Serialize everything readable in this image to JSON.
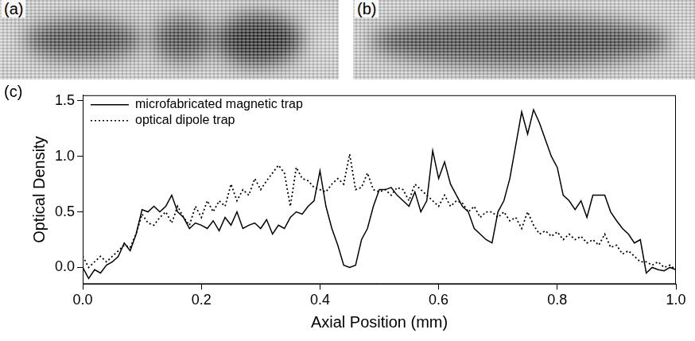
{
  "images": [
    {
      "label": "(a)"
    },
    {
      "label": "(b)"
    }
  ],
  "chart_data": {
    "type": "line",
    "panel_label": "(c)",
    "x_label": "Axial Position (mm)",
    "y_label": "Optical Density",
    "xlim": [
      0,
      1
    ],
    "xticks": [
      {
        "value": 0,
        "label": "0.0"
      },
      {
        "value": 0.2,
        "label": "0.2"
      },
      {
        "value": 0.4,
        "label": "0.4"
      },
      {
        "value": 0.6,
        "label": "0.6"
      },
      {
        "value": 0.8,
        "label": "0.8"
      },
      {
        "value": 1,
        "label": "1.0"
      }
    ],
    "ylim": [
      -0.15,
      1.55
    ],
    "yticks": [
      {
        "value": 0,
        "label": "0.0"
      },
      {
        "value": 0.5,
        "label": "0.5"
      },
      {
        "value": 1,
        "label": "1.0"
      },
      {
        "value": 1.5,
        "label": "1.5"
      }
    ],
    "grid": false,
    "legend": "upper left",
    "x": [
      0.0,
      0.01,
      0.02,
      0.03,
      0.04,
      0.05,
      0.06,
      0.07,
      0.08,
      0.09,
      0.1,
      0.11,
      0.12,
      0.13,
      0.14,
      0.15,
      0.16,
      0.17,
      0.18,
      0.19,
      0.2,
      0.21,
      0.22,
      0.23,
      0.24,
      0.25,
      0.26,
      0.27,
      0.28,
      0.29,
      0.3,
      0.31,
      0.32,
      0.33,
      0.34,
      0.35,
      0.36,
      0.37,
      0.38,
      0.39,
      0.4,
      0.41,
      0.42,
      0.43,
      0.44,
      0.45,
      0.46,
      0.47,
      0.48,
      0.49,
      0.5,
      0.51,
      0.52,
      0.53,
      0.54,
      0.55,
      0.56,
      0.57,
      0.58,
      0.59,
      0.6,
      0.61,
      0.62,
      0.63,
      0.64,
      0.65,
      0.66,
      0.67,
      0.68,
      0.69,
      0.7,
      0.71,
      0.72,
      0.73,
      0.74,
      0.75,
      0.76,
      0.77,
      0.78,
      0.79,
      0.8,
      0.81,
      0.82,
      0.83,
      0.84,
      0.85,
      0.86,
      0.87,
      0.88,
      0.89,
      0.9,
      0.91,
      0.92,
      0.93,
      0.94,
      0.95,
      0.96,
      0.97,
      0.98,
      0.99,
      1.0
    ],
    "series": [
      {
        "name": "microfabricated magnetic trap",
        "color": "#000000",
        "line_style": "solid",
        "values": [
          0.0,
          -0.1,
          -0.02,
          -0.05,
          0.02,
          0.05,
          0.1,
          0.22,
          0.15,
          0.3,
          0.52,
          0.5,
          0.55,
          0.5,
          0.55,
          0.65,
          0.5,
          0.45,
          0.35,
          0.4,
          0.38,
          0.35,
          0.42,
          0.33,
          0.45,
          0.38,
          0.5,
          0.35,
          0.38,
          0.4,
          0.35,
          0.43,
          0.3,
          0.38,
          0.35,
          0.45,
          0.5,
          0.48,
          0.55,
          0.6,
          0.87,
          0.55,
          0.35,
          0.2,
          0.02,
          0.0,
          0.02,
          0.25,
          0.35,
          0.55,
          0.7,
          0.7,
          0.72,
          0.65,
          0.6,
          0.55,
          0.68,
          0.5,
          0.6,
          1.05,
          0.8,
          0.95,
          0.75,
          0.65,
          0.55,
          0.5,
          0.35,
          0.3,
          0.25,
          0.22,
          0.5,
          0.6,
          0.8,
          1.1,
          1.4,
          1.2,
          1.42,
          1.3,
          1.15,
          1.0,
          0.9,
          0.65,
          0.6,
          0.52,
          0.6,
          0.45,
          0.65,
          0.65,
          0.65,
          0.5,
          0.42,
          0.35,
          0.3,
          0.22,
          0.25,
          -0.05,
          0.0,
          -0.02,
          -0.03,
          0.0,
          -0.02
        ]
      },
      {
        "name": "optical dipole trap",
        "color": "#000000",
        "line_style": "dotted",
        "values": [
          0.1,
          0.0,
          0.05,
          0.1,
          0.05,
          0.1,
          0.15,
          0.2,
          0.18,
          0.3,
          0.48,
          0.4,
          0.38,
          0.45,
          0.5,
          0.4,
          0.55,
          0.45,
          0.38,
          0.55,
          0.45,
          0.6,
          0.5,
          0.6,
          0.55,
          0.75,
          0.6,
          0.7,
          0.65,
          0.8,
          0.7,
          0.78,
          0.85,
          0.92,
          0.85,
          0.55,
          0.9,
          0.8,
          0.78,
          0.72,
          0.7,
          0.68,
          0.75,
          0.8,
          0.75,
          1.02,
          0.7,
          0.72,
          0.85,
          0.7,
          0.68,
          0.7,
          0.65,
          0.72,
          0.7,
          0.6,
          0.75,
          0.7,
          0.65,
          0.6,
          0.55,
          0.65,
          0.55,
          0.6,
          0.58,
          0.5,
          0.55,
          0.45,
          0.5,
          0.5,
          0.45,
          0.5,
          0.42,
          0.45,
          0.35,
          0.5,
          0.38,
          0.3,
          0.33,
          0.28,
          0.32,
          0.25,
          0.3,
          0.25,
          0.28,
          0.22,
          0.25,
          0.2,
          0.3,
          0.18,
          0.2,
          0.12,
          0.15,
          0.1,
          0.05,
          0.05,
          0.02,
          0.05,
          0.0,
          0.02,
          -0.02
        ]
      }
    ]
  }
}
